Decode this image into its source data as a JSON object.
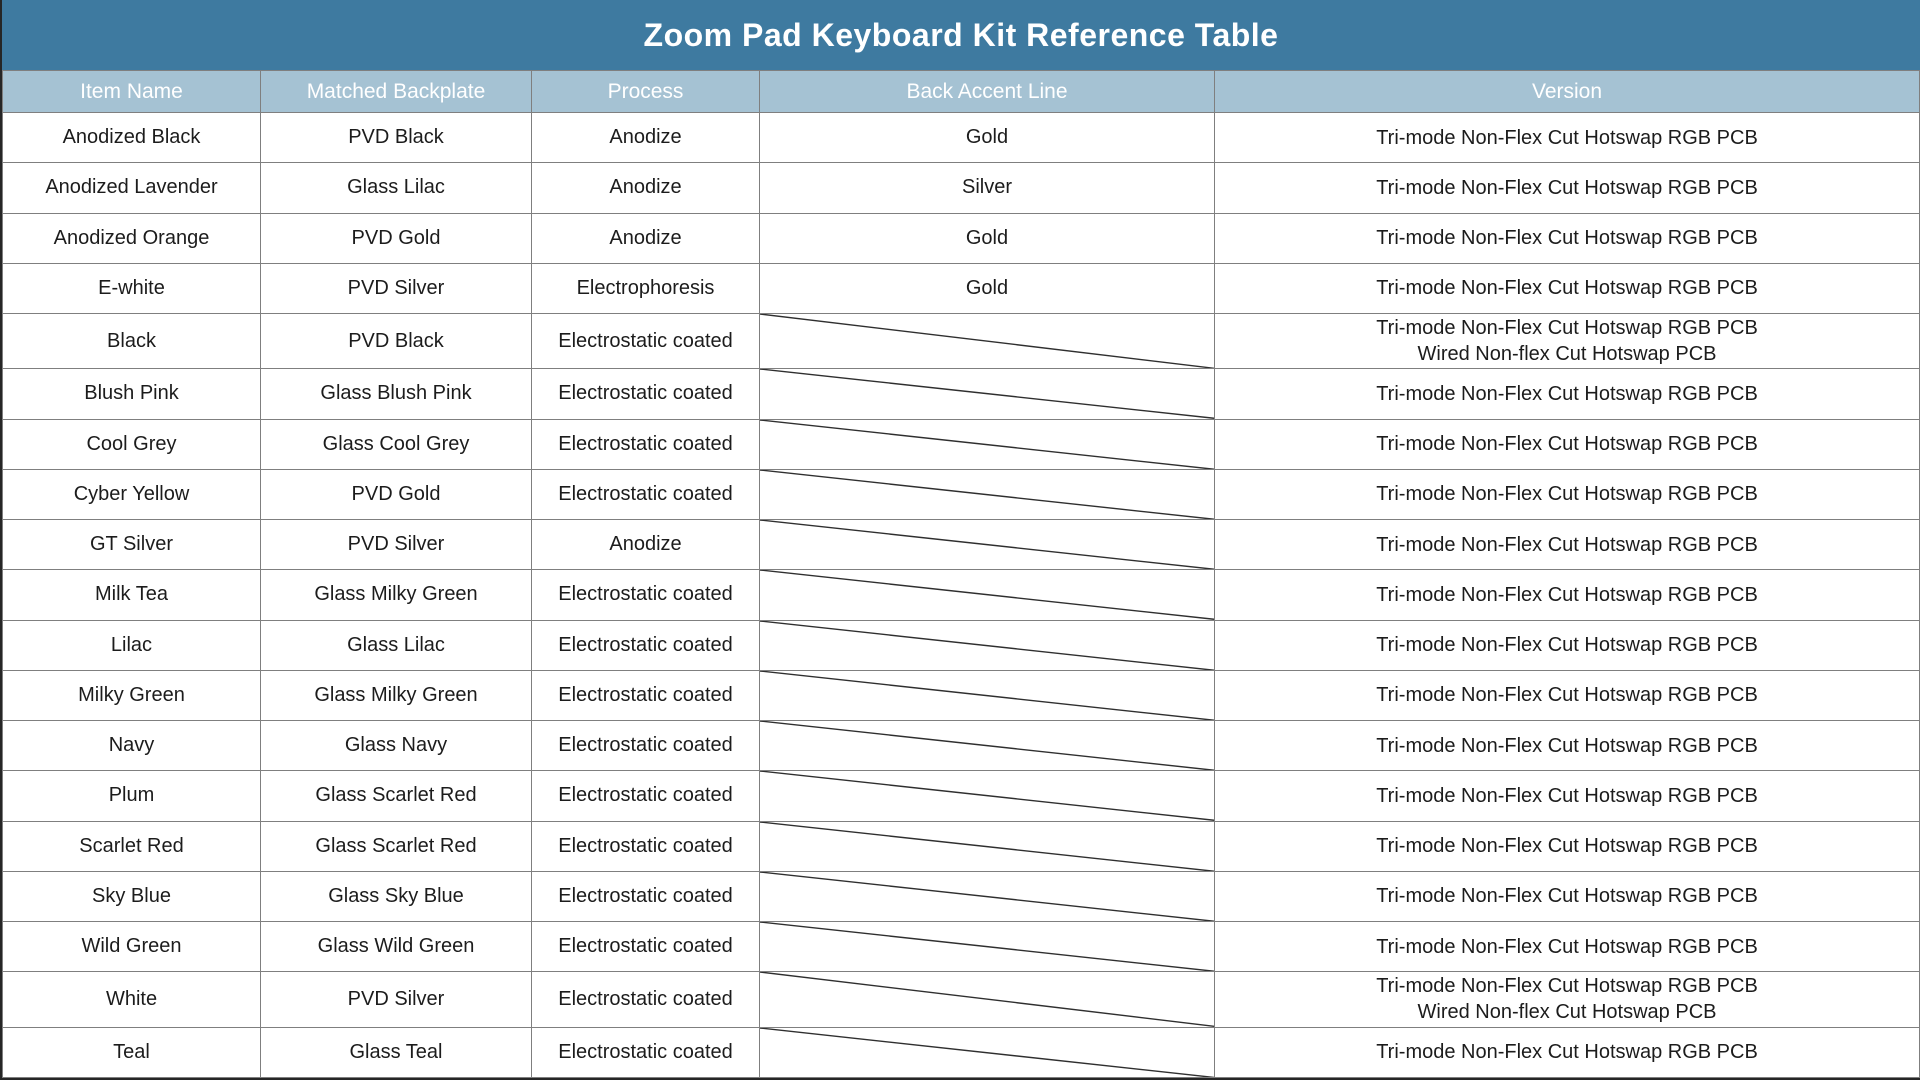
{
  "title": "Zoom Pad Keyboard Kit Reference Table",
  "columns": [
    "Item Name",
    "Matched Backplate",
    "Process",
    "Back Accent Line",
    "Version"
  ],
  "colors": {
    "title_bg": "#3e7aa0",
    "title_text": "#ffffff",
    "header_bg": "#a5c2d3",
    "header_text": "#ffffff",
    "highlight_bg": "#a9c8da",
    "grid_line": "#7f7f7f",
    "outer_border": "#262626",
    "diagonal_line": "#2f2f2f",
    "cell_text": "#1c1c1c"
  },
  "rows": [
    {
      "item": "Anodized Black",
      "backplate": "PVD Black",
      "process": "Anodize",
      "process_highlight": false,
      "back_accent": "Gold",
      "version": [
        "Tri-mode Non-Flex Cut Hotswap RGB PCB"
      ],
      "version_highlight": false
    },
    {
      "item": "Anodized Lavender",
      "backplate": "Glass Lilac",
      "process": "Anodize",
      "process_highlight": false,
      "back_accent": "Silver",
      "version": [
        "Tri-mode Non-Flex Cut Hotswap RGB PCB"
      ],
      "version_highlight": false
    },
    {
      "item": "Anodized Orange",
      "backplate": "PVD Gold",
      "process": "Anodize",
      "process_highlight": false,
      "back_accent": "Gold",
      "version": [
        "Tri-mode Non-Flex Cut Hotswap RGB PCB"
      ],
      "version_highlight": false
    },
    {
      "item": "E-white",
      "backplate": "PVD Silver",
      "process": "Electrophoresis",
      "process_highlight": true,
      "back_accent": "Gold",
      "version": [
        "Tri-mode Non-Flex Cut Hotswap RGB PCB"
      ],
      "version_highlight": false
    },
    {
      "item": "Black",
      "backplate": "PVD Black",
      "process": "Electrostatic coated",
      "process_highlight": false,
      "back_accent": null,
      "version": [
        "Tri-mode Non-Flex Cut Hotswap RGB PCB",
        "Wired Non-flex Cut Hotswap PCB"
      ],
      "version_highlight": true
    },
    {
      "item": "Blush Pink",
      "backplate": "Glass Blush Pink",
      "process": "Electrostatic coated",
      "process_highlight": false,
      "back_accent": null,
      "version": [
        "Tri-mode Non-Flex Cut Hotswap RGB PCB"
      ],
      "version_highlight": false
    },
    {
      "item": "Cool Grey",
      "backplate": "Glass Cool Grey",
      "process": "Electrostatic coated",
      "process_highlight": false,
      "back_accent": null,
      "version": [
        "Tri-mode Non-Flex Cut Hotswap RGB PCB"
      ],
      "version_highlight": false
    },
    {
      "item": "Cyber Yellow",
      "backplate": "PVD Gold",
      "process": "Electrostatic coated",
      "process_highlight": false,
      "back_accent": null,
      "version": [
        "Tri-mode Non-Flex Cut Hotswap RGB PCB"
      ],
      "version_highlight": false
    },
    {
      "item": "GT Silver",
      "backplate": "PVD Silver",
      "process": "Anodize",
      "process_highlight": true,
      "back_accent": null,
      "version": [
        "Tri-mode Non-Flex Cut Hotswap RGB PCB"
      ],
      "version_highlight": false
    },
    {
      "item": "Milk Tea",
      "backplate": "Glass Milky Green",
      "process": "Electrostatic coated",
      "process_highlight": false,
      "back_accent": null,
      "version": [
        "Tri-mode Non-Flex Cut Hotswap RGB PCB"
      ],
      "version_highlight": false
    },
    {
      "item": "Lilac",
      "backplate": "Glass Lilac",
      "process": "Electrostatic coated",
      "process_highlight": false,
      "back_accent": null,
      "version": [
        "Tri-mode Non-Flex Cut Hotswap RGB PCB"
      ],
      "version_highlight": false
    },
    {
      "item": "Milky Green",
      "backplate": "Glass Milky Green",
      "process": "Electrostatic coated",
      "process_highlight": false,
      "back_accent": null,
      "version": [
        "Tri-mode Non-Flex Cut Hotswap RGB PCB"
      ],
      "version_highlight": false
    },
    {
      "item": "Navy",
      "backplate": "Glass Navy",
      "process": "Electrostatic coated",
      "process_highlight": false,
      "back_accent": null,
      "version": [
        "Tri-mode Non-Flex Cut Hotswap RGB PCB"
      ],
      "version_highlight": false
    },
    {
      "item": "Plum",
      "backplate": "Glass Scarlet Red",
      "process": "Electrostatic coated",
      "process_highlight": false,
      "back_accent": null,
      "version": [
        "Tri-mode Non-Flex Cut Hotswap RGB PCB"
      ],
      "version_highlight": false
    },
    {
      "item": "Scarlet Red",
      "backplate": "Glass Scarlet Red",
      "process": "Electrostatic coated",
      "process_highlight": false,
      "back_accent": null,
      "version": [
        "Tri-mode Non-Flex Cut Hotswap RGB PCB"
      ],
      "version_highlight": false
    },
    {
      "item": "Sky Blue",
      "backplate": "Glass Sky Blue",
      "process": "Electrostatic coated",
      "process_highlight": false,
      "back_accent": null,
      "version": [
        "Tri-mode Non-Flex Cut Hotswap RGB PCB"
      ],
      "version_highlight": false
    },
    {
      "item": "Wild Green",
      "backplate": "Glass Wild Green",
      "process": "Electrostatic coated",
      "process_highlight": false,
      "back_accent": null,
      "version": [
        "Tri-mode Non-Flex Cut Hotswap RGB PCB"
      ],
      "version_highlight": false
    },
    {
      "item": "White",
      "backplate": "PVD Silver",
      "process": "Electrostatic coated",
      "process_highlight": false,
      "back_accent": null,
      "version": [
        "Tri-mode Non-Flex Cut Hotswap RGB PCB",
        "Wired Non-flex Cut Hotswap PCB"
      ],
      "version_highlight": true
    },
    {
      "item": "Teal",
      "backplate": "Glass Teal",
      "process": "Electrostatic coated",
      "process_highlight": false,
      "back_accent": null,
      "version": [
        "Tri-mode Non-Flex Cut Hotswap RGB PCB"
      ],
      "version_highlight": false
    }
  ]
}
